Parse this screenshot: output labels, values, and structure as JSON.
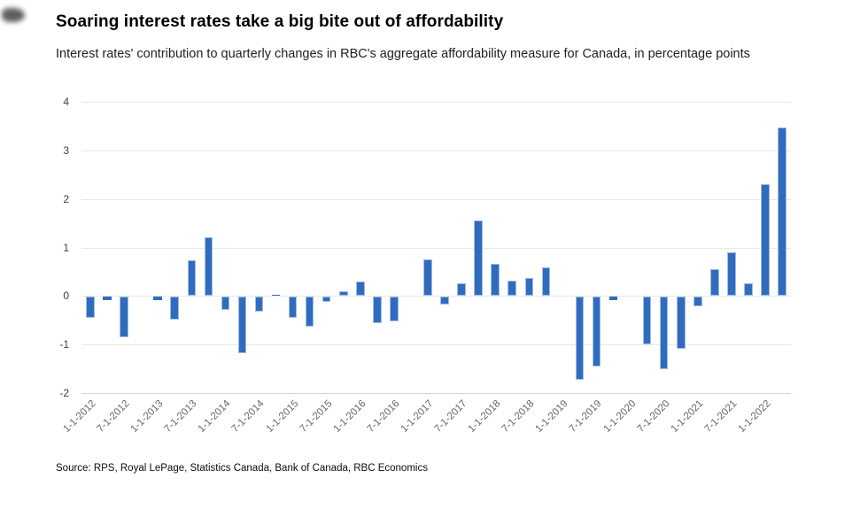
{
  "page": {
    "background": "#ffffff"
  },
  "chart": {
    "title": "Soaring interest rates take a big bite out of affordability",
    "subtitle": "Interest rates' contribution to quarterly changes in RBC's aggregate affordability measure for Canada, in percentage points",
    "source": "Source: RPS, Royal LePage, Statistics Canada, Bank of Canada, RBC Economics"
  },
  "chart_data": {
    "type": "bar",
    "title": "Soaring interest rates take a big bite out of affordability",
    "subtitle": "Interest rates' contribution to quarterly changes in RBC's aggregate affordability measure for Canada, in percentage points",
    "source": "Source: RPS, Royal LePage, Statistics Canada, Bank of Canada, RBC Economics",
    "xlabel": "",
    "ylabel": "",
    "ylim": [
      -2,
      4
    ],
    "yticks": [
      4,
      3,
      2,
      1,
      0,
      -1,
      -2
    ],
    "grid": true,
    "legend": "none",
    "x": [
      "1-1-2012",
      "4-1-2012",
      "7-1-2012",
      "10-1-2012",
      "1-1-2013",
      "4-1-2013",
      "7-1-2013",
      "10-1-2013",
      "1-1-2014",
      "4-1-2014",
      "7-1-2014",
      "10-1-2014",
      "1-1-2015",
      "4-1-2015",
      "7-1-2015",
      "10-1-2015",
      "1-1-2016",
      "4-1-2016",
      "7-1-2016",
      "10-1-2016",
      "1-1-2017",
      "4-1-2017",
      "7-1-2017",
      "10-1-2017",
      "1-1-2018",
      "4-1-2018",
      "7-1-2018",
      "10-1-2018",
      "1-1-2019",
      "4-1-2019",
      "7-1-2019",
      "10-1-2019",
      "1-1-2020",
      "4-1-2020",
      "7-1-2020",
      "10-1-2020",
      "1-1-2021",
      "4-1-2021",
      "7-1-2021",
      "10-1-2021",
      "1-1-2022",
      "4-1-2022"
    ],
    "values": [
      -0.44,
      -0.07,
      -0.84,
      0.0,
      -0.06,
      -0.46,
      0.73,
      1.21,
      -0.26,
      -1.16,
      -0.3,
      0.03,
      -0.44,
      -0.62,
      -0.1,
      0.1,
      0.29,
      -0.54,
      -0.51,
      0.0,
      0.75,
      -0.16,
      0.27,
      1.56,
      0.67,
      0.32,
      0.37,
      0.59,
      0.0,
      -1.7,
      -1.43,
      -0.06,
      0.0,
      -0.98,
      -1.49,
      -1.07,
      -0.2,
      0.56,
      0.9,
      0.26,
      2.3,
      3.47
    ],
    "x_tick_labels": [
      "1-1-2012",
      "7-1-2012",
      "1-1-2013",
      "7-1-2013",
      "1-1-2014",
      "7-1-2014",
      "1-1-2015",
      "7-1-2015",
      "1-1-2016",
      "7-1-2016",
      "1-1-2017",
      "7-1-2017",
      "1-1-2018",
      "7-1-2018",
      "1-1-2019",
      "7-1-2019",
      "1-1-2020",
      "7-1-2020",
      "1-1-2021",
      "7-1-2021",
      "1-1-2022"
    ],
    "x_tick_every": 2,
    "colors": {
      "bar_fill": "#2f6cbe",
      "bar_edge": "#a3bce4",
      "grid_line": "#e7e7e7",
      "baseline": "#cdd5ea",
      "y_tick_text": "#3f3f3f",
      "x_tick_text": "#666666",
      "title_text": "#000000"
    }
  }
}
